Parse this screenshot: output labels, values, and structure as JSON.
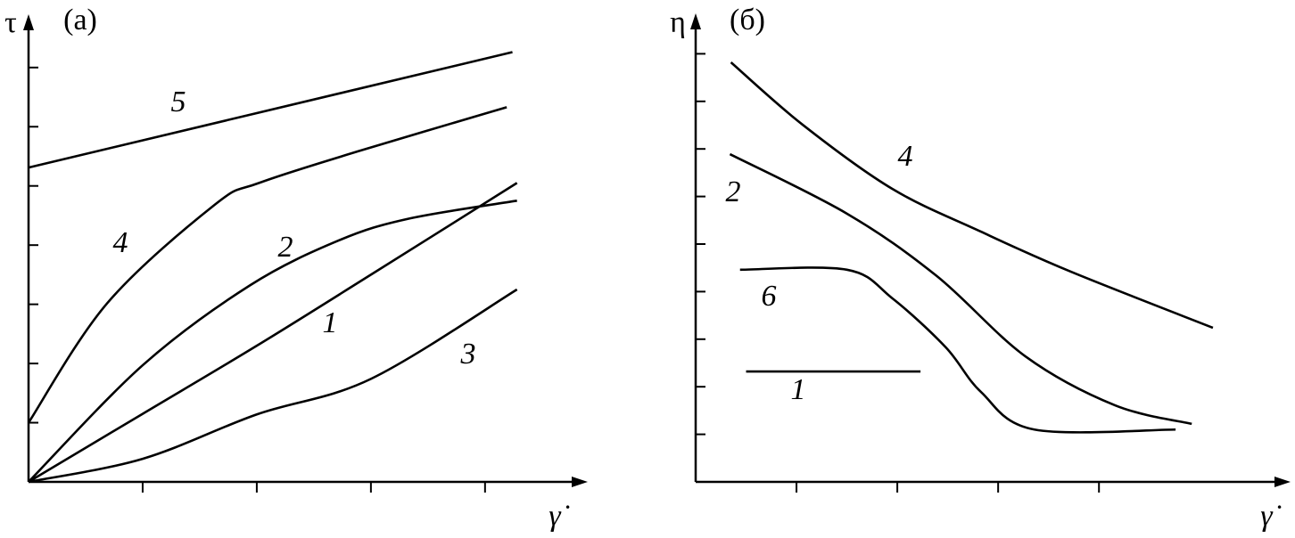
{
  "chart_data": [
    {
      "type": "line",
      "title": "(а)",
      "ylabel": "τ",
      "xlabel": "γ̇",
      "xlim": [
        0,
        4.9
      ],
      "ylim": [
        0,
        7.9
      ],
      "xticks": [
        1,
        2,
        3,
        4
      ],
      "yticks": [
        1,
        2,
        3,
        4,
        5,
        6,
        7
      ],
      "series": [
        {
          "name": "5",
          "color": "#000000",
          "x": [
            0,
            4.24
          ],
          "values": [
            5.31,
            7.26
          ]
        },
        {
          "name": "4",
          "color": "#000000",
          "x": [
            0,
            0.69,
            1.63,
            2.02,
            2.88,
            4.19
          ],
          "values": [
            1.0,
            3.02,
            4.68,
            5.05,
            5.58,
            6.33
          ]
        },
        {
          "name": "2",
          "color": "#000000",
          "x": [
            0,
            1,
            1.94,
            2.72,
            3.34,
            4.28
          ],
          "values": [
            0,
            1.97,
            3.32,
            4.08,
            4.45,
            4.75
          ]
        },
        {
          "name": "1",
          "color": "#000000",
          "x": [
            0,
            1,
            2,
            3,
            4.28
          ],
          "values": [
            0,
            1.15,
            2.3,
            3.5,
            5.05
          ]
        },
        {
          "name": "3",
          "color": "#000000",
          "x": [
            0,
            1,
            2,
            3,
            4.28
          ],
          "values": [
            0,
            0.39,
            1.14,
            1.74,
            3.25
          ]
        }
      ]
    },
    {
      "type": "line",
      "title": "(б)",
      "ylabel": "η",
      "xlabel": "γ̇",
      "xlim": [
        0,
        5.9
      ],
      "ylim": [
        0,
        9.85
      ],
      "xticks": [
        1,
        2,
        3,
        4
      ],
      "yticks": [
        1,
        2,
        3,
        4,
        5,
        6,
        7,
        8,
        9
      ],
      "series": [
        {
          "name": "4",
          "color": "#000000",
          "x": [
            0.35,
            1.06,
            1.95,
            2.83,
            3.72,
            5.13
          ],
          "values": [
            8.82,
            7.51,
            6.16,
            5.26,
            4.42,
            3.24
          ]
        },
        {
          "name": "2",
          "color": "#000000",
          "x": [
            0.34,
            1.5,
            2.39,
            3.27,
            4.16,
            4.92
          ],
          "values": [
            6.89,
            5.64,
            4.33,
            2.64,
            1.61,
            1.22
          ]
        },
        {
          "name": "6",
          "color": "#000000",
          "x": [
            0.44,
            1.5,
            1.95,
            2.48,
            2.83,
            3.36,
            4.76
          ],
          "values": [
            4.46,
            4.46,
            3.86,
            2.83,
            1.89,
            1.1,
            1.1
          ]
        },
        {
          "name": "1",
          "color": "#000000",
          "x": [
            0.5,
            2.23
          ],
          "values": [
            2.32,
            2.32
          ]
        }
      ]
    }
  ]
}
